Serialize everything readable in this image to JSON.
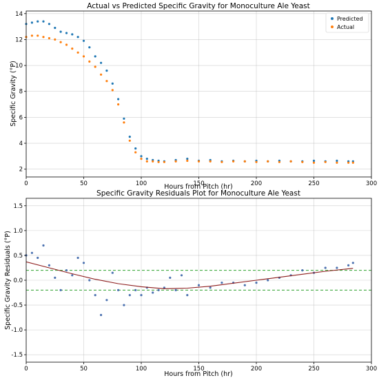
{
  "chart_data": [
    {
      "type": "scatter",
      "title": "Actual vs Predicted Specific Gravity for Monoculture Ale Yeast",
      "xlabel": "Hours from Pitch (hr)",
      "ylabel": "Specific Gravity (°P)",
      "xlim": [
        0,
        300
      ],
      "ylim": [
        1.4,
        14.2
      ],
      "xticks": [
        0,
        50,
        100,
        150,
        200,
        250,
        300
      ],
      "yticks": [
        2,
        4,
        6,
        8,
        10,
        12,
        14
      ],
      "grid": true,
      "legend": "top-right",
      "series": [
        {
          "name": "Predicted",
          "color": "#1f77b4",
          "marker": "dot",
          "x": [
            0,
            5,
            10,
            15,
            20,
            25,
            30,
            35,
            40,
            45,
            50,
            55,
            60,
            65,
            70,
            75,
            80,
            85,
            90,
            95,
            100,
            105,
            110,
            115,
            120,
            130,
            140,
            150,
            160,
            170,
            180,
            190,
            200,
            210,
            220,
            230,
            240,
            250,
            260,
            270,
            280,
            284
          ],
          "y": [
            13.2,
            13.3,
            13.4,
            13.4,
            13.2,
            12.9,
            12.6,
            12.5,
            12.4,
            12.2,
            11.9,
            11.4,
            10.7,
            10.2,
            9.6,
            8.6,
            7.4,
            5.9,
            4.5,
            3.6,
            3.0,
            2.8,
            2.7,
            2.65,
            2.6,
            2.7,
            2.8,
            2.65,
            2.7,
            2.6,
            2.65,
            2.6,
            2.65,
            2.6,
            2.65,
            2.6,
            2.6,
            2.65,
            2.6,
            2.65,
            2.6,
            2.6
          ]
        },
        {
          "name": "Actual",
          "color": "#ff7f0e",
          "marker": "dot",
          "x": [
            0,
            5,
            10,
            15,
            20,
            25,
            30,
            35,
            40,
            45,
            50,
            55,
            60,
            65,
            70,
            75,
            80,
            85,
            90,
            95,
            100,
            105,
            110,
            115,
            120,
            130,
            140,
            150,
            160,
            170,
            180,
            190,
            200,
            210,
            220,
            230,
            240,
            250,
            260,
            270,
            280,
            284
          ],
          "y": [
            12.2,
            12.3,
            12.3,
            12.2,
            12.1,
            12.0,
            11.8,
            11.6,
            11.3,
            11.0,
            10.7,
            10.3,
            9.9,
            9.3,
            8.8,
            8.1,
            7.0,
            5.6,
            4.2,
            3.3,
            2.8,
            2.6,
            2.6,
            2.55,
            2.55,
            2.6,
            2.65,
            2.6,
            2.6,
            2.55,
            2.6,
            2.6,
            2.55,
            2.6,
            2.55,
            2.6,
            2.55,
            2.5,
            2.55,
            2.5,
            2.5,
            2.5
          ]
        }
      ]
    },
    {
      "type": "scatter",
      "title": "Specific Gravity Residuals Plot for Monoculture Ale Yeast",
      "xlabel": "Hours from Pitch (hr)",
      "ylabel": "Specific Gravity Residuals (°P)",
      "xlim": [
        0,
        300
      ],
      "ylim": [
        -1.65,
        1.65
      ],
      "xticks": [
        0,
        50,
        100,
        150,
        200,
        250,
        300
      ],
      "yticks": [
        -1.5,
        -1.0,
        -0.5,
        0.0,
        0.5,
        1.0,
        1.5
      ],
      "grid": true,
      "reference_lines": [
        0.2,
        -0.2
      ],
      "reference_color": "#2ca02c",
      "series": [
        {
          "name": "",
          "color": "#4c72b0",
          "marker": "dot",
          "x": [
            0,
            5,
            10,
            15,
            20,
            25,
            30,
            35,
            40,
            45,
            50,
            55,
            60,
            65,
            70,
            75,
            80,
            85,
            90,
            95,
            100,
            105,
            110,
            115,
            120,
            125,
            130,
            135,
            140,
            150,
            160,
            170,
            180,
            190,
            200,
            210,
            220,
            230,
            240,
            250,
            260,
            270,
            280,
            284
          ],
          "y": [
            0.5,
            0.55,
            0.45,
            0.7,
            0.3,
            0.05,
            -0.2,
            0.2,
            0.1,
            0.45,
            0.35,
            0.0,
            -0.3,
            -0.7,
            -0.4,
            0.15,
            -0.2,
            -0.5,
            -0.3,
            -0.2,
            -0.3,
            -0.15,
            -0.25,
            -0.2,
            -0.15,
            0.05,
            -0.2,
            0.1,
            -0.3,
            -0.1,
            -0.15,
            -0.05,
            -0.05,
            -0.1,
            -0.05,
            0.0,
            0.05,
            0.1,
            0.2,
            0.15,
            0.25,
            0.25,
            0.3,
            0.35
          ]
        },
        {
          "name": "",
          "type": "line",
          "color": "#8b1a1a",
          "x": [
            0,
            20,
            40,
            60,
            80,
            100,
            120,
            140,
            160,
            180,
            200,
            220,
            240,
            260,
            284
          ],
          "y": [
            0.37,
            0.25,
            0.13,
            0.02,
            -0.07,
            -0.13,
            -0.17,
            -0.16,
            -0.12,
            -0.06,
            0.0,
            0.06,
            0.12,
            0.18,
            0.24
          ]
        }
      ]
    }
  ]
}
